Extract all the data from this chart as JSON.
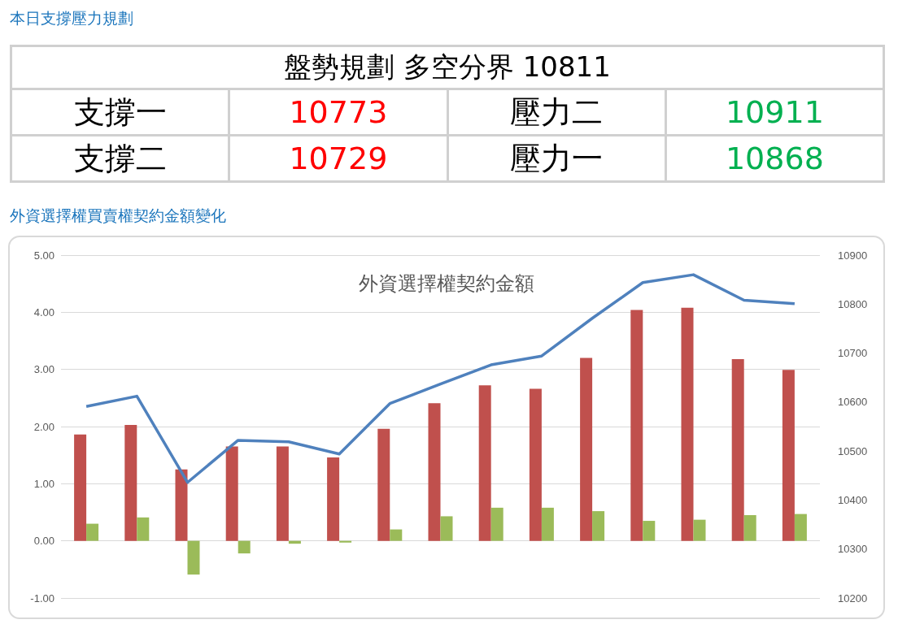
{
  "chart_data": [
    {
      "type": "other",
      "title": "本日支撐壓力規劃",
      "annotations": [
        "盤勢規劃 多空分界 10811",
        "支撐一",
        "10773",
        "壓力二",
        "10911",
        "支撐二",
        "10729",
        "壓力一",
        "10868"
      ],
      "colors": [
        "#000000",
        "#000000",
        "#ff0000",
        "#000000",
        "#00b050",
        "#000000",
        "#ff0000",
        "#000000",
        "#00b050"
      ]
    },
    {
      "type": "bar",
      "title": "外資選擇權買賣權契約金額變化",
      "subtitle": "外資選擇權契約金額",
      "categories": [
        null,
        null,
        null,
        null,
        null,
        null,
        null,
        null,
        null,
        null,
        null,
        null,
        null,
        null,
        null
      ],
      "series": [
        {
          "type": "bar",
          "color": "#c0504d",
          "values": [
            1.86,
            2.03,
            1.25,
            1.65,
            1.65,
            1.46,
            1.96,
            2.41,
            2.72,
            2.66,
            3.2,
            4.04,
            4.08,
            3.18,
            2.99
          ]
        },
        {
          "type": "bar",
          "color": "#9bbb59",
          "values": [
            0.3,
            0.41,
            -0.59,
            -0.22,
            -0.05,
            -0.03,
            0.2,
            0.43,
            0.58,
            0.58,
            0.52,
            0.35,
            0.37,
            0.45,
            0.47
          ]
        },
        {
          "type": "line",
          "axis": "y2",
          "color": "#4f81bd",
          "marker": "none",
          "values": [
            10591,
            10612,
            10436,
            10522,
            10519,
            10494,
            10597,
            10637,
            10676,
            10694,
            10771,
            10844,
            10860,
            10808,
            10801
          ]
        }
      ],
      "ylim": [
        -1,
        5
      ],
      "yticks": [
        {
          "value": -1,
          "label": "-1.00"
        },
        {
          "value": 0,
          "label": "0.00"
        },
        {
          "value": 1,
          "label": "1.00"
        },
        {
          "value": 2,
          "label": "2.00"
        },
        {
          "value": 3,
          "label": "3.00"
        },
        {
          "value": 4,
          "label": "4.00"
        },
        {
          "value": 5,
          "label": "5.00"
        }
      ],
      "y2lim": [
        10200,
        10900
      ],
      "y2ticks": [
        10200,
        10300,
        10400,
        10500,
        10600,
        10700,
        10800,
        10900
      ],
      "grid": "y"
    }
  ]
}
